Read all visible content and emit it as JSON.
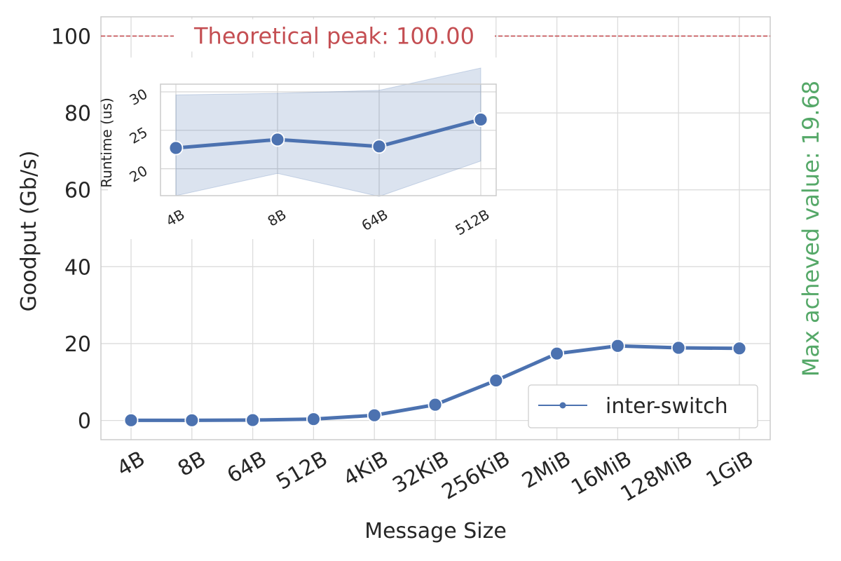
{
  "chart_data": [
    {
      "type": "line",
      "categories": [
        "4B",
        "8B",
        "64B",
        "512B",
        "4KiB",
        "32KiB",
        "256KiB",
        "2MiB",
        "16MiB",
        "128MiB",
        "1GiB"
      ],
      "series": [
        {
          "name": "inter-switch",
          "values": [
            0.05,
            0.05,
            0.1,
            0.35,
            1.35,
            4.1,
            10.4,
            17.4,
            19.4,
            18.9,
            18.75
          ],
          "color": "#4c72b0"
        }
      ],
      "xlabel": "Message Size",
      "ylabel": "Goodput (Gb/s)",
      "ylim": [
        -5,
        105
      ],
      "yticks": [
        0,
        20,
        40,
        60,
        80,
        100
      ],
      "grid": true,
      "legend_position": "lower-right",
      "annotations": {
        "peak_text": "Theoretical peak: 100.00",
        "peak_value": 100,
        "peak_color": "#c44e52",
        "max_text": "Max acheved value: 19.68",
        "max_color": "#55a868"
      }
    },
    {
      "type": "line",
      "inset": true,
      "categories": [
        "4B",
        "8B",
        "64B",
        "512B"
      ],
      "series": [
        {
          "values": [
            22.7,
            23.8,
            22.9,
            26.4
          ],
          "band_low": [
            16.5,
            19.4,
            16.4,
            21.0
          ],
          "band_high": [
            29.6,
            29.8,
            30.2,
            33.1
          ],
          "color": "#4c72b0"
        }
      ],
      "ylabel": "Runtime (us)",
      "ylim": [
        16.5,
        31
      ],
      "yticks": [
        20,
        25,
        30
      ],
      "grid": true
    }
  ]
}
